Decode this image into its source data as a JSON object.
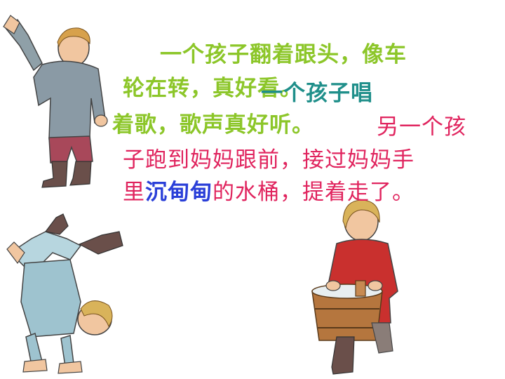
{
  "slide": {
    "line1": "一个孩子翻着跟头，像车",
    "line2a": "轮在转，真好看。",
    "line2b": "一个孩子唱",
    "line3a": "着歌，歌声真好听。",
    "line3b": "另一个孩",
    "line4": "子跑到妈妈跟前，接过妈妈手",
    "line5a": "里",
    "line5b": "沉甸甸",
    "line5c": "的水桶，提着走了。"
  },
  "colors": {
    "green": "#8cc629",
    "teal": "#1f8f8a",
    "red": "#e0245e",
    "blue": "#2a3fd8"
  },
  "figures": [
    "boy-waving",
    "boy-tumbling",
    "boy-carrying-bucket"
  ]
}
